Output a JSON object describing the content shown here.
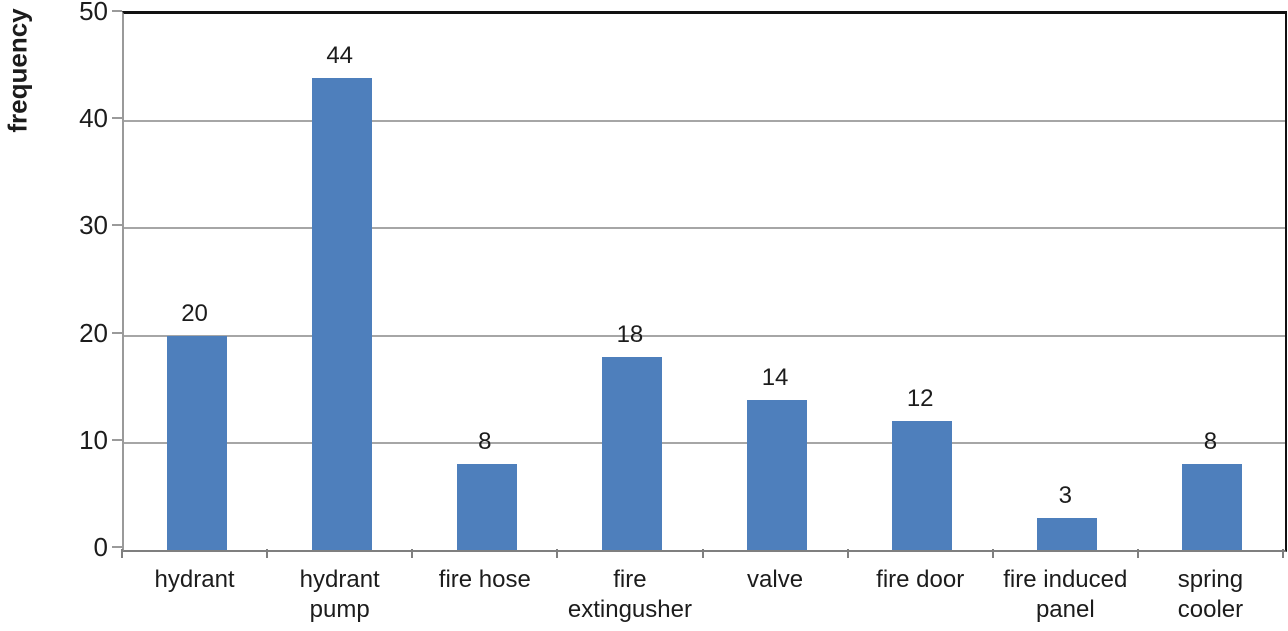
{
  "chart_data": {
    "type": "bar",
    "title": "",
    "ylabel": "frequency",
    "xlabel": "",
    "categories": [
      "hydrant",
      "hydrant pump",
      "fire hose",
      "fire extingusher",
      "valve",
      "fire door",
      "fire induced panel",
      "spring cooler"
    ],
    "category_label_lines": [
      [
        "hydrant"
      ],
      [
        "hydrant",
        "pump"
      ],
      [
        "fire hose"
      ],
      [
        "fire",
        "extingusher"
      ],
      [
        "valve"
      ],
      [
        "fire door"
      ],
      [
        "fire induced",
        "panel"
      ],
      [
        "spring",
        "cooler"
      ]
    ],
    "values": [
      20,
      44,
      8,
      18,
      14,
      12,
      3,
      8
    ],
    "data_labels": [
      "20",
      "44",
      "8",
      "18",
      "14",
      "12",
      "3",
      "8"
    ],
    "ylim": [
      0,
      50
    ],
    "yticks": [
      0,
      10,
      20,
      30,
      40,
      50
    ],
    "grid": true,
    "legend": "none",
    "colors": {
      "bar": "#4e7fbc",
      "gridline": "#a6a6a6",
      "axis": "#9a9a9a",
      "plot_border": "#111111",
      "text": "#1c1c1c"
    }
  }
}
